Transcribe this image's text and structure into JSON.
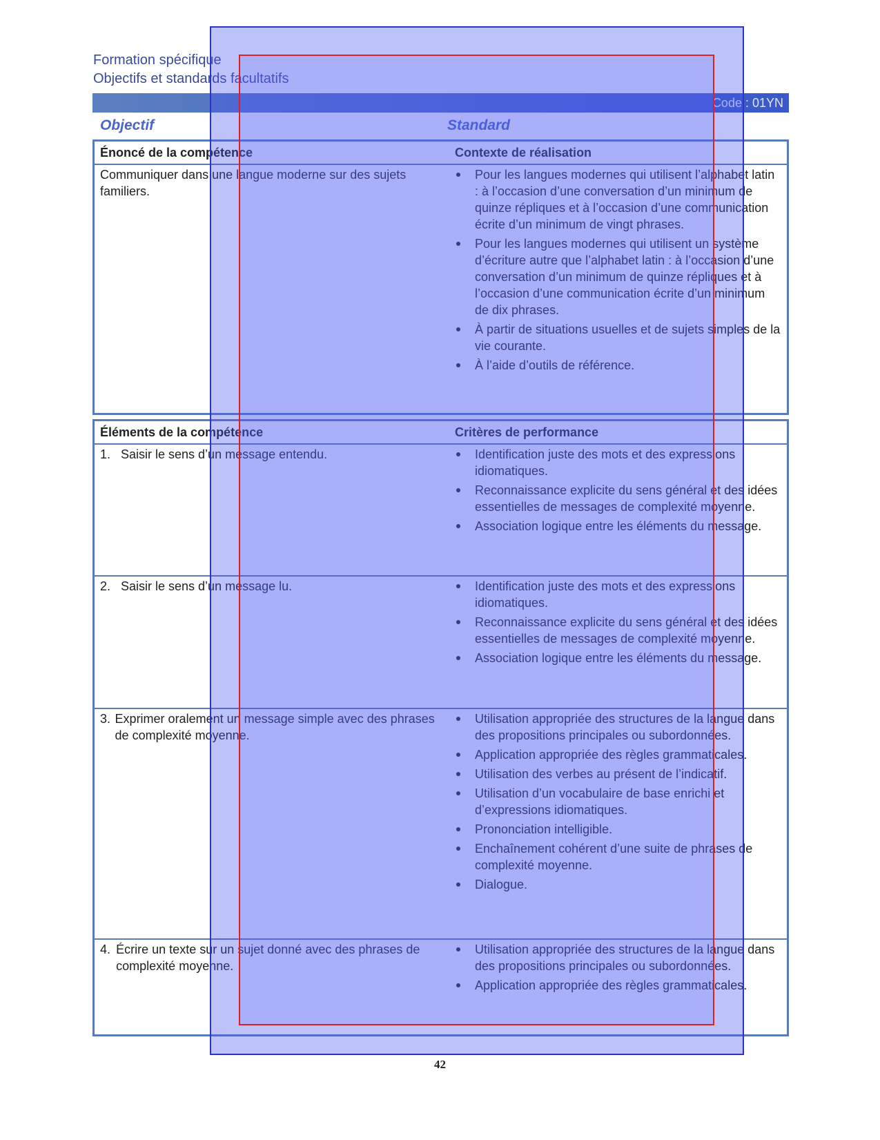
{
  "header": {
    "line1": "Formation spécifique",
    "line2": "Objectifs et standards facultatifs",
    "code": "Code : 01YN"
  },
  "columns": {
    "objective": "Objectif",
    "standard": "Standard"
  },
  "statement": {
    "heading": "Énoncé de la compétence",
    "context_heading": "Contexte de réalisation",
    "text": "Communiquer dans une langue moderne sur des sujets familiers.",
    "context": [
      "Pour les langues modernes qui utilisent l’alphabet latin : à l’occasion d’une conversation d’un minimum de quinze répliques et à l’occasion d’une communication écrite d’un minimum de vingt phrases.",
      "Pour les langues modernes qui utilisent un système d’écriture autre que l’alphabet latin : à l’occasion d’une conversation d’un minimum de quinze répliques et à l’occasion d’une communication écrite d’un minimum de dix phrases.",
      "À partir de situations usuelles et de sujets simples de la vie courante.",
      "À l’aide d’outils de référence."
    ]
  },
  "elements": {
    "heading": "Éléments de la compétence",
    "criteria_heading": "Critères de performance",
    "rows": [
      {
        "number": "1.",
        "text": "Saisir le sens d’un message entendu.",
        "criteria": [
          "Identification juste des mots et des expressions idiomatiques.",
          "Reconnaissance explicite du sens général et des idées essentielles de messages de complexité moyenne.",
          "Association logique entre les éléments du message."
        ]
      },
      {
        "number": "2.",
        "text": "Saisir le sens d’un message lu.",
        "criteria": [
          "Identification juste des mots et des expressions idiomatiques.",
          "Reconnaissance explicite du sens général et des idées essentielles de messages de complexité moyenne.",
          "Association logique entre les éléments du message."
        ]
      },
      {
        "number": "3.",
        "text": "Exprimer oralement un message simple avec des phrases de complexité moyenne.",
        "criteria": [
          "Utilisation appropriée des structures de la langue dans des propositions principales ou subordonnées.",
          "Application appropriée des règles grammaticales.",
          "Utilisation des verbes au présent de l’indicatif.",
          "Utilisation d’un vocabulaire de base enrichi et d’expressions idiomatiques.",
          "Prononciation intelligible.",
          "Enchaînement cohérent d’une suite de phrases de complexité moyenne.",
          "Dialogue."
        ]
      },
      {
        "number": "4.",
        "text": "Écrire un texte sur un sujet donné avec des phrases de complexité moyenne.",
        "criteria": [
          "Utilisation appropriée des structures de la langue dans des propositions principales ou subordonnées.",
          "Application appropriée des règles grammaticales."
        ]
      }
    ]
  },
  "page_number": "42"
}
